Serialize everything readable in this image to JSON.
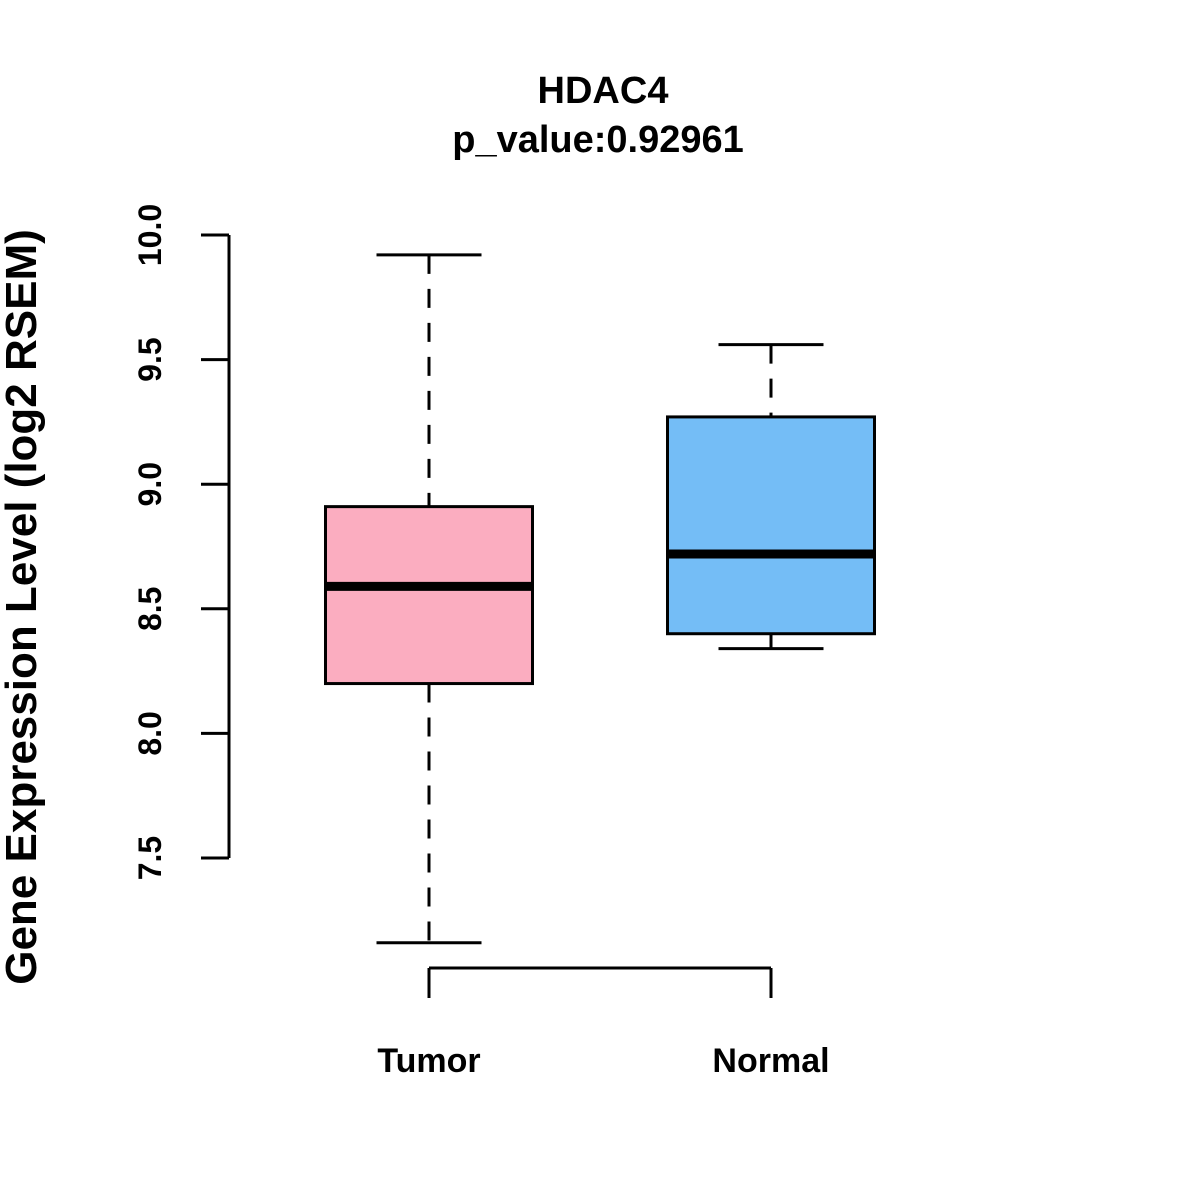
{
  "figure": {
    "background_color": "#ffffff",
    "axis_color": "#000000"
  },
  "chart_data": {
    "type": "boxplot",
    "title": "HDAC4",
    "subtitle": "p_value:0.92961",
    "xlabel": "",
    "ylabel": "Gene Expression Level (log2 RSEM)",
    "ylim": [
      7.5,
      10.0
    ],
    "yticks": [
      7.5,
      8.0,
      8.5,
      9.0,
      9.5,
      10.0
    ],
    "ytick_labels": [
      "7.5",
      "8.0",
      "8.5",
      "9.0",
      "9.5",
      "10.0"
    ],
    "grid": false,
    "legend": "none",
    "categories": [
      "Tumor",
      "Normal"
    ],
    "groups": [
      {
        "label": "Tumor",
        "fill_color": "#FBADC0",
        "stats": {
          "whisker_low": 7.16,
          "q1": 8.2,
          "median": 8.59,
          "q3": 8.91,
          "whisker_high": 9.92
        }
      },
      {
        "label": "Normal",
        "fill_color": "#74BDF6",
        "stats": {
          "whisker_low": 8.34,
          "q1": 8.4,
          "median": 8.72,
          "q3": 9.27,
          "whisker_high": 9.56
        }
      }
    ]
  }
}
